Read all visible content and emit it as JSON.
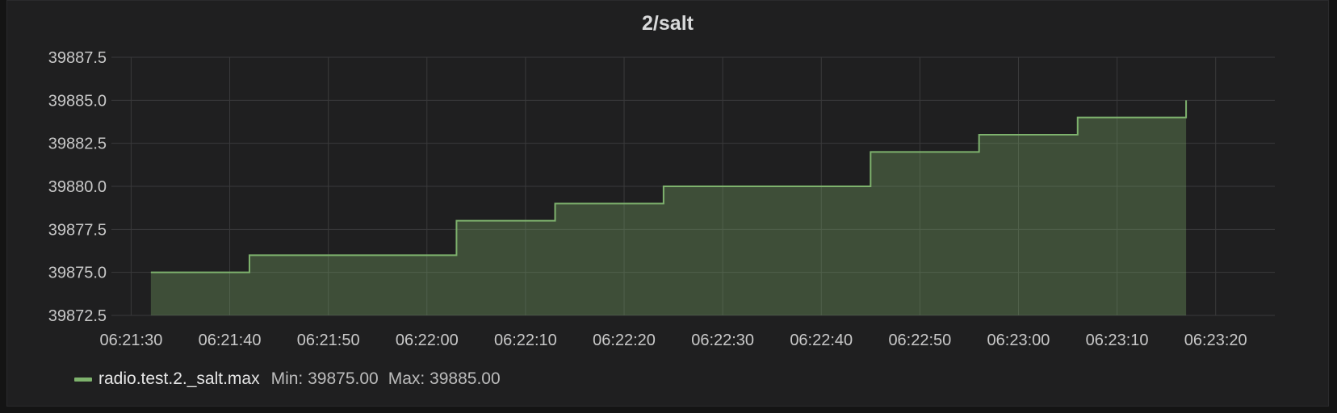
{
  "panel": {
    "title": "2/salt"
  },
  "chart_data": {
    "type": "area",
    "step": true,
    "x": [
      "06:21:32",
      "06:21:42",
      "06:21:52",
      "06:22:03",
      "06:22:13",
      "06:22:24",
      "06:22:45",
      "06:22:56",
      "06:23:06",
      "06:23:17"
    ],
    "series": [
      {
        "name": "radio.test.2._salt.max",
        "values": [
          39875,
          39876,
          39876,
          39878,
          39879,
          39880,
          39882,
          39883,
          39884,
          39885
        ],
        "color": "#7eb26d"
      }
    ],
    "x_ticks": [
      "06:21:30",
      "06:21:40",
      "06:21:50",
      "06:22:00",
      "06:22:10",
      "06:22:20",
      "06:22:30",
      "06:22:40",
      "06:22:50",
      "06:23:00",
      "06:23:10",
      "06:23:20"
    ],
    "y_ticks": [
      "39872.5",
      "39875.0",
      "39877.5",
      "39880.0",
      "39882.5",
      "39885.0",
      "39887.5"
    ],
    "xlim": [
      "06:21:28",
      "06:23:26"
    ],
    "ylim": [
      39872.5,
      39887.5
    ],
    "grid": true,
    "legend": "bottom-left"
  },
  "legend": {
    "series_name": "radio.test.2._salt.max",
    "min_label": "Min: 39875.00",
    "max_label": "Max: 39885.00",
    "color": "#7eb26d"
  }
}
